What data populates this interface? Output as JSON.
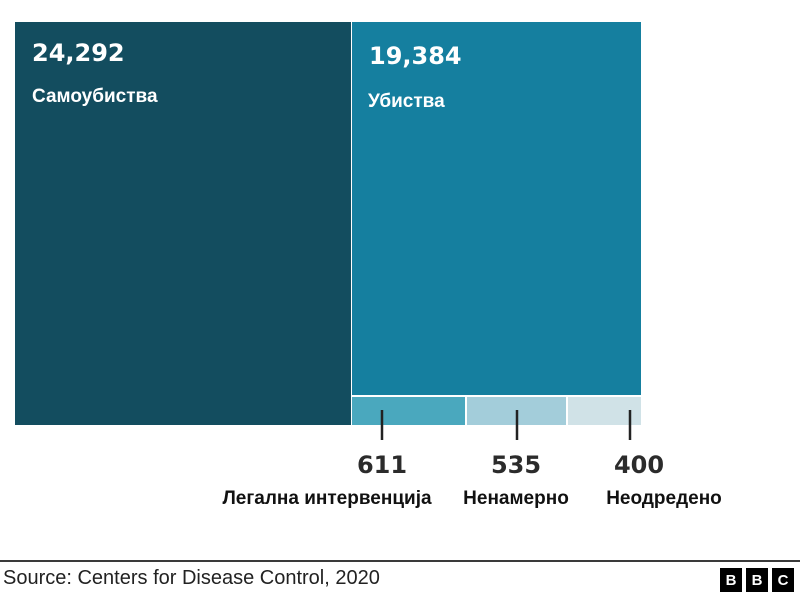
{
  "chart_data": {
    "type": "treemap",
    "title": "",
    "items": [
      {
        "name": "Самоубиства",
        "value": 24292,
        "display": "24,292",
        "color": "#134d5f",
        "label_position": "inside"
      },
      {
        "name": "Убиства",
        "value": 19384,
        "display": "19,384",
        "color": "#157f9f",
        "label_position": "inside"
      },
      {
        "name": "Легална интервенција",
        "value": 611,
        "display": "611",
        "color": "#4aa8be",
        "label_position": "outside"
      },
      {
        "name": "Ненамерно",
        "value": 535,
        "display": "535",
        "color": "#a3cdda",
        "label_position": "outside"
      },
      {
        "name": "Неодредено",
        "value": 400,
        "display": "400",
        "color": "#d0e2e7",
        "label_position": "outside"
      }
    ]
  },
  "footer": {
    "source": "Source: Centers for Disease Control, 2020",
    "logo_letters": [
      "B",
      "B",
      "C"
    ]
  }
}
